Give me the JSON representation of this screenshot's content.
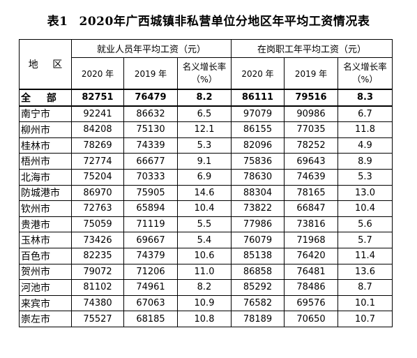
{
  "title": {
    "table_no": "表1",
    "text": "2020年广西城镇非私营单位分地区年平均工资情况表"
  },
  "header": {
    "region": "地 区",
    "group1": "就业人员年平均工资（元）",
    "group2": "在岗职工年平均工资（元）",
    "col_2020": "2020 年",
    "col_2019": "2019 年",
    "col_rate_line1": "名义增长率",
    "col_rate_line2": "（%）"
  },
  "rows": [
    {
      "region": "全 部",
      "e2020": "82751",
      "e2019": "76479",
      "erate": "8.2",
      "s2020": "86111",
      "s2019": "79516",
      "srate": "8.3"
    },
    {
      "region": "南宁市",
      "e2020": "92241",
      "e2019": "86632",
      "erate": "6.5",
      "s2020": "97079",
      "s2019": "90986",
      "srate": "6.7"
    },
    {
      "region": "柳州市",
      "e2020": "84208",
      "e2019": "75130",
      "erate": "12.1",
      "s2020": "86155",
      "s2019": "77035",
      "srate": "11.8"
    },
    {
      "region": "桂林市",
      "e2020": "78269",
      "e2019": "74339",
      "erate": "5.3",
      "s2020": "82096",
      "s2019": "78252",
      "srate": "4.9"
    },
    {
      "region": "梧州市",
      "e2020": "72774",
      "e2019": "66677",
      "erate": "9.1",
      "s2020": "75836",
      "s2019": "69643",
      "srate": "8.9"
    },
    {
      "region": "北海市",
      "e2020": "75204",
      "e2019": "70333",
      "erate": "6.9",
      "s2020": "78630",
      "s2019": "74639",
      "srate": "5.3"
    },
    {
      "region": "防城港市",
      "e2020": "86970",
      "e2019": "75905",
      "erate": "14.6",
      "s2020": "88304",
      "s2019": "78165",
      "srate": "13.0"
    },
    {
      "region": "钦州市",
      "e2020": "72763",
      "e2019": "65894",
      "erate": "10.4",
      "s2020": "73822",
      "s2019": "66847",
      "srate": "10.4"
    },
    {
      "region": "贵港市",
      "e2020": "75059",
      "e2019": "71119",
      "erate": "5.5",
      "s2020": "77986",
      "s2019": "73816",
      "srate": "5.6"
    },
    {
      "region": "玉林市",
      "e2020": "73426",
      "e2019": "69667",
      "erate": "5.4",
      "s2020": "76079",
      "s2019": "71968",
      "srate": "5.7"
    },
    {
      "region": "百色市",
      "e2020": "82235",
      "e2019": "74379",
      "erate": "10.6",
      "s2020": "85138",
      "s2019": "76420",
      "srate": "11.4"
    },
    {
      "region": "贺州市",
      "e2020": "79072",
      "e2019": "71206",
      "erate": "11.0",
      "s2020": "86858",
      "s2019": "76481",
      "srate": "13.6"
    },
    {
      "region": "河池市",
      "e2020": "81102",
      "e2019": "74961",
      "erate": "8.2",
      "s2020": "85292",
      "s2019": "78486",
      "srate": "8.7"
    },
    {
      "region": "来宾市",
      "e2020": "74380",
      "e2019": "67063",
      "erate": "10.9",
      "s2020": "76582",
      "s2019": "69576",
      "srate": "10.1"
    },
    {
      "region": "崇左市",
      "e2020": "75527",
      "e2019": "68185",
      "erate": "10.8",
      "s2020": "78189",
      "s2019": "70650",
      "srate": "10.7"
    }
  ]
}
